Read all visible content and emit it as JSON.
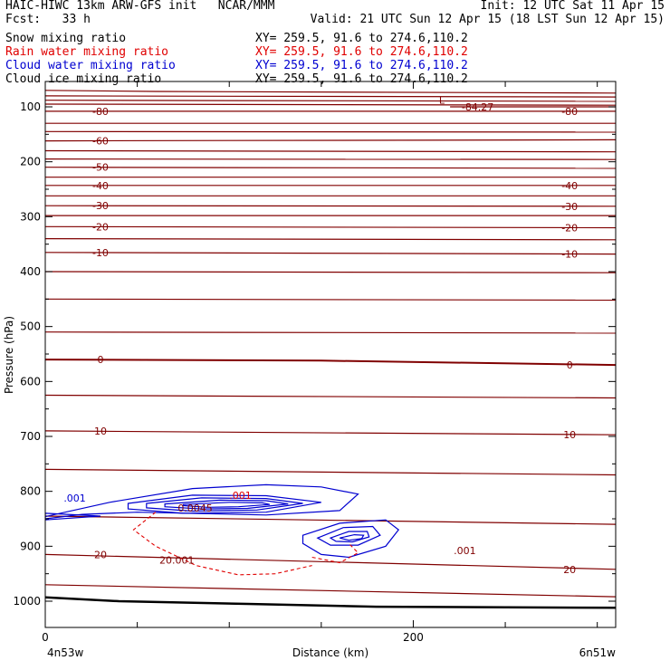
{
  "header": {
    "left1": "HAIC-HIWC 13km ARW-GFS init   NCAR/MMM",
    "left2": "Fcst:   33 h",
    "right1": "Init: 12 UTC Sat 11 Apr 15",
    "right2": "Valid: 21 UTC Sun 12 Apr 15 (18 LST Sun 12 Apr 15)",
    "fields": [
      {
        "name": "Snow mixing ratio",
        "xy": "XY= 259.5, 91.6 to 274.6,110.2",
        "color": "#000000"
      },
      {
        "name": "Rain water mixing ratio",
        "xy": "XY= 259.5, 91.6 to 274.6,110.2",
        "color": "#e00000"
      },
      {
        "name": "Cloud water mixing ratio",
        "xy": "XY= 259.5, 91.6 to 274.6,110.2",
        "color": "#0000d0"
      },
      {
        "name": "Cloud ice mixing ratio",
        "xy": "XY= 259.5, 91.6 to 274.6,110.2",
        "color": "#000000"
      }
    ]
  },
  "chart_data": {
    "type": "line",
    "xlabel": "Distance (km)",
    "ylabel": "Pressure (hPa)",
    "x_ticks": [
      0,
      200
    ],
    "x_range": [
      0,
      310
    ],
    "y_ticks": [
      100,
      200,
      300,
      400,
      500,
      600,
      700,
      800,
      900,
      1000
    ],
    "y_range": [
      50,
      1035
    ],
    "x_left_label": "4n53w",
    "x_right_label": "6n51w",
    "temperature_color": "#800000",
    "temperature_lines": [
      {
        "label": "-84.27",
        "level": [
          [
            220,
            100
          ],
          [
            260,
            100
          ],
          [
            310,
            100
          ]
        ]
      },
      {
        "label": "-80",
        "level": [
          [
            0,
            108
          ],
          [
            310,
            108
          ]
        ]
      },
      {
        "label": "-60",
        "level": [
          [
            0,
            162
          ],
          [
            310,
            160
          ]
        ]
      },
      {
        "label": "-50",
        "level": [
          [
            0,
            210
          ],
          [
            310,
            212
          ]
        ]
      },
      {
        "label": "-40",
        "level": [
          [
            0,
            243
          ],
          [
            310,
            243
          ]
        ]
      },
      {
        "label": "-30",
        "level": [
          [
            0,
            280
          ],
          [
            310,
            281
          ]
        ]
      },
      {
        "label": "-20",
        "level": [
          [
            0,
            318
          ],
          [
            310,
            320
          ]
        ]
      },
      {
        "label": "-10",
        "level": [
          [
            0,
            365
          ],
          [
            310,
            368
          ]
        ]
      },
      {
        "label": "0",
        "level": [
          [
            0,
            560
          ],
          [
            150,
            562
          ],
          [
            310,
            570
          ]
        ]
      },
      {
        "label": "10",
        "level": [
          [
            0,
            690
          ],
          [
            310,
            697
          ]
        ]
      },
      {
        "label": "20",
        "level": [
          [
            0,
            915
          ],
          [
            310,
            942
          ]
        ]
      }
    ],
    "extra_levels": [
      [
        [
          0,
          70
        ],
        [
          60,
          72
        ],
        [
          310,
          75
        ]
      ],
      [
        [
          0,
          80
        ],
        [
          310,
          82
        ]
      ],
      [
        [
          0,
          88
        ],
        [
          310,
          90
        ]
      ],
      [
        [
          0,
          95
        ],
        [
          310,
          97
        ]
      ],
      [
        [
          0,
          130
        ],
        [
          310,
          130
        ]
      ],
      [
        [
          0,
          145
        ],
        [
          310,
          146
        ]
      ],
      [
        [
          0,
          180
        ],
        [
          310,
          182
        ]
      ],
      [
        [
          0,
          195
        ],
        [
          310,
          196
        ]
      ],
      [
        [
          0,
          228
        ],
        [
          310,
          228
        ]
      ],
      [
        [
          0,
          262
        ],
        [
          310,
          262
        ]
      ],
      [
        [
          0,
          298
        ],
        [
          310,
          298
        ]
      ],
      [
        [
          0,
          340
        ],
        [
          310,
          342
        ]
      ],
      [
        [
          0,
          400
        ],
        [
          310,
          402
        ]
      ],
      [
        [
          0,
          450
        ],
        [
          310,
          452
        ]
      ],
      [
        [
          0,
          510
        ],
        [
          310,
          512
        ]
      ],
      [
        [
          0,
          625
        ],
        [
          310,
          630
        ]
      ],
      [
        [
          0,
          760
        ],
        [
          310,
          770
        ]
      ],
      [
        [
          0,
          845
        ],
        [
          310,
          860
        ]
      ],
      [
        [
          0,
          970
        ],
        [
          310,
          992
        ]
      ]
    ],
    "surface_pressure": [
      [
        0,
        993
      ],
      [
        40,
        1000
      ],
      [
        110,
        1005
      ],
      [
        180,
        1010
      ],
      [
        310,
        1012
      ]
    ],
    "annotations": [
      {
        "text": "L",
        "x": 214,
        "y": 88,
        "color": "#800000"
      },
      {
        "text": ".001",
        "x": 10,
        "y": 812,
        "color": "#0000d0"
      },
      {
        "text": "20.001",
        "x": 62,
        "y": 925,
        "color": "#800000"
      },
      {
        "text": ".001",
        "x": 222,
        "y": 908,
        "color": "#800000"
      },
      {
        "text": "0.0045",
        "x": 72,
        "y": 830,
        "color": "#800000"
      },
      {
        "text": ".001",
        "x": 100,
        "y": 807,
        "color": "#e00000"
      }
    ],
    "cloud_water": [
      {
        "name": "outer",
        "points": [
          [
            0,
            846
          ],
          [
            35,
            820
          ],
          [
            80,
            795
          ],
          [
            120,
            788
          ],
          [
            150,
            792
          ],
          [
            170,
            805
          ],
          [
            160,
            835
          ],
          [
            120,
            843
          ],
          [
            50,
            838
          ],
          [
            20,
            842
          ],
          [
            0,
            850
          ]
        ]
      },
      {
        "name": "left-tip",
        "points": [
          [
            0,
            840
          ],
          [
            30,
            845
          ],
          [
            0,
            852
          ]
        ]
      },
      {
        "name": "c1",
        "points": [
          [
            45,
            822
          ],
          [
            80,
            807
          ],
          [
            120,
            808
          ],
          [
            150,
            820
          ],
          [
            120,
            838
          ],
          [
            75,
            840
          ],
          [
            45,
            832
          ]
        ]
      },
      {
        "name": "c2",
        "points": [
          [
            55,
            822
          ],
          [
            85,
            812
          ],
          [
            120,
            813
          ],
          [
            140,
            822
          ],
          [
            115,
            834
          ],
          [
            80,
            836
          ],
          [
            55,
            830
          ]
        ]
      },
      {
        "name": "c3",
        "points": [
          [
            65,
            823
          ],
          [
            95,
            816
          ],
          [
            120,
            817
          ],
          [
            132,
            823
          ],
          [
            110,
            831
          ],
          [
            85,
            832
          ],
          [
            65,
            828
          ]
        ]
      },
      {
        "name": "c4",
        "points": [
          [
            75,
            824
          ],
          [
            100,
            820
          ],
          [
            118,
            821
          ],
          [
            122,
            824
          ],
          [
            105,
            828
          ],
          [
            88,
            829
          ],
          [
            75,
            826
          ]
        ]
      },
      {
        "name": "right-outer",
        "points": [
          [
            140,
            880
          ],
          [
            160,
            858
          ],
          [
            185,
            852
          ],
          [
            192,
            870
          ],
          [
            185,
            900
          ],
          [
            165,
            920
          ],
          [
            150,
            915
          ],
          [
            140,
            895
          ]
        ]
      },
      {
        "name": "r1",
        "points": [
          [
            148,
            885
          ],
          [
            162,
            866
          ],
          [
            178,
            864
          ],
          [
            182,
            880
          ],
          [
            170,
            898
          ],
          [
            155,
            898
          ]
        ]
      },
      {
        "name": "r2",
        "points": [
          [
            155,
            885
          ],
          [
            165,
            873
          ],
          [
            175,
            873
          ],
          [
            176,
            883
          ],
          [
            167,
            892
          ],
          [
            158,
            891
          ]
        ]
      },
      {
        "name": "r3",
        "points": [
          [
            160,
            885
          ],
          [
            168,
            879
          ],
          [
            173,
            880
          ],
          [
            172,
            886
          ],
          [
            165,
            889
          ]
        ]
      }
    ],
    "rain_water": [
      {
        "name": "rain",
        "points": [
          [
            60,
            838
          ],
          [
            48,
            870
          ],
          [
            60,
            900
          ],
          [
            82,
            935
          ],
          [
            105,
            952
          ],
          [
            125,
            950
          ],
          [
            145,
            935
          ]
        ]
      },
      {
        "name": "rain2",
        "points": [
          [
            145,
            920
          ],
          [
            160,
            930
          ],
          [
            170,
            912
          ],
          [
            165,
            895
          ]
        ]
      }
    ]
  }
}
